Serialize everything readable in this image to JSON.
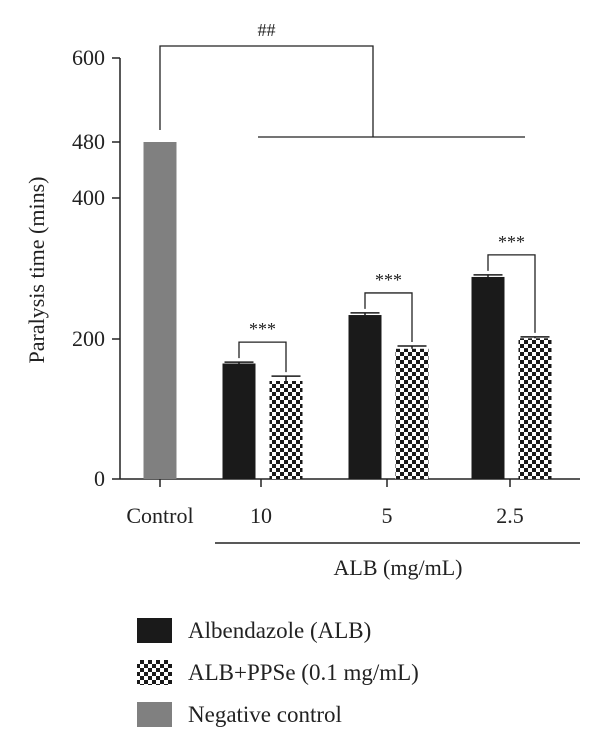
{
  "chart_data": {
    "type": "bar",
    "ylabel": "Paralysis time (mins)",
    "xlabel": "ALB (mg/mL)",
    "ylim": [
      0,
      600
    ],
    "yticks": [
      {
        "value": 0,
        "label": "0"
      },
      {
        "value": 200,
        "label": "200"
      },
      {
        "value": 400,
        "label": "400"
      },
      {
        "value": 480,
        "label": "480"
      },
      {
        "value": 600,
        "label": "600"
      }
    ],
    "categories": [
      "Control",
      "10",
      "5",
      "2.5"
    ],
    "series": [
      {
        "key": "neg",
        "name": "Negative control",
        "color": "#808080",
        "pattern": "solid",
        "values": [
          480,
          null,
          null,
          null
        ],
        "errors": [
          0,
          null,
          null,
          null
        ]
      },
      {
        "key": "alb",
        "name": "Albendazole (ALB)",
        "color": "#1a1a1a",
        "pattern": "solid",
        "values": [
          null,
          165,
          234,
          288
        ],
        "errors": [
          null,
          2,
          3,
          3
        ]
      },
      {
        "key": "ppse",
        "name": "ALB+PPSe (0.1 mg/mL)",
        "color": "#1a1a1a",
        "pattern": "checker",
        "values": [
          null,
          140,
          186,
          201
        ],
        "errors": [
          null,
          7,
          4,
          2
        ]
      }
    ],
    "significance": {
      "pairwise": [
        {
          "category": "10",
          "label": "***"
        },
        {
          "category": "5",
          "label": "***"
        },
        {
          "category": "2.5",
          "label": "***"
        }
      ],
      "control_vs_all": {
        "label": "##"
      }
    },
    "legend": {
      "position": "bottom-left"
    }
  }
}
